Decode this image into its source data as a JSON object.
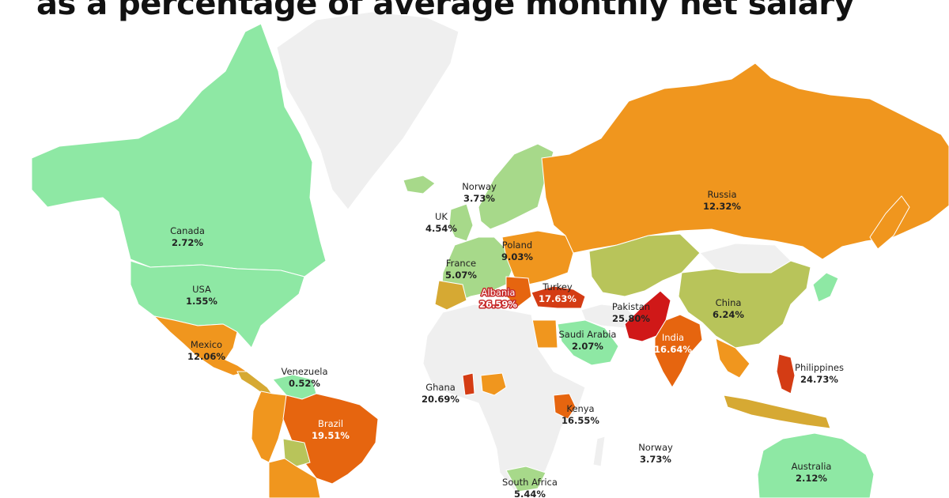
{
  "title": "as a percentage of average monthly net salary",
  "colors": {
    "no_data": "#efefef",
    "border": "#ffffff",
    "lowest": "#8ee8a4",
    "low": "#a7d98a",
    "mid_low": "#b8c45a",
    "mid": "#d6a933",
    "mid_high": "#f0961e",
    "high": "#e6650f",
    "very_high": "#d43c14",
    "highest": "#d01818"
  },
  "countries": [
    {
      "name": "Canada",
      "value": "2.72%"
    },
    {
      "name": "USA",
      "value": "1.55%"
    },
    {
      "name": "Mexico",
      "value": "12.06%"
    },
    {
      "name": "Venezuela",
      "value": "0.52%"
    },
    {
      "name": "Brazil",
      "value": "19.51%"
    },
    {
      "name": "Norway",
      "value": "3.73%"
    },
    {
      "name": "UK",
      "value": "4.54%"
    },
    {
      "name": "France",
      "value": "5.07%"
    },
    {
      "name": "Poland",
      "value": "9.03%"
    },
    {
      "name": "Albania",
      "value": "26.59%"
    },
    {
      "name": "Turkey",
      "value": "17.63%"
    },
    {
      "name": "Russia",
      "value": "12.32%"
    },
    {
      "name": "Pakistan",
      "value": "25.80%"
    },
    {
      "name": "India",
      "value": "16.64%"
    },
    {
      "name": "China",
      "value": "6.24%"
    },
    {
      "name": "Saudi Arabia",
      "value": "2.07%"
    },
    {
      "name": "Ghana",
      "value": "20.69%"
    },
    {
      "name": "Kenya",
      "value": "16.55%"
    },
    {
      "name": "Philippines",
      "value": "24.73%"
    },
    {
      "name": "Norway",
      "value": "3.73%"
    },
    {
      "name": "Australia",
      "value": "2.12%"
    },
    {
      "name": "South Africa",
      "value": "5.44%"
    }
  ]
}
